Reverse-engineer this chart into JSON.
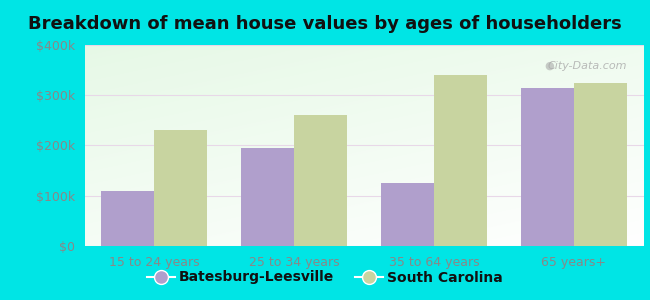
{
  "title": "Breakdown of mean house values by ages of householders",
  "categories": [
    "15 to 24 years",
    "25 to 34 years",
    "35 to 64 years",
    "65 years+"
  ],
  "batesburg_values": [
    110000,
    195000,
    125000,
    315000
  ],
  "sc_values": [
    230000,
    260000,
    340000,
    325000
  ],
  "bar_color_batesburg": "#b09fcc",
  "bar_color_sc": "#c8d4a0",
  "background_color": "#00e5e5",
  "ylim": [
    0,
    400000
  ],
  "yticks": [
    0,
    100000,
    200000,
    300000,
    400000
  ],
  "ytick_labels": [
    "$0",
    "$100k",
    "$200k",
    "$300k",
    "$400k"
  ],
  "legend_batesburg": "Batesburg-Leesville",
  "legend_sc": "South Carolina",
  "bar_width": 0.38,
  "title_fontsize": 13,
  "tick_fontsize": 9,
  "legend_fontsize": 10,
  "watermark": "City-Data.com",
  "grid_color": "#e8d8e8",
  "tick_color": "#888888"
}
